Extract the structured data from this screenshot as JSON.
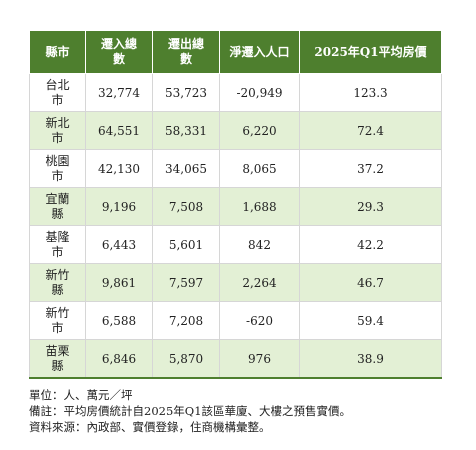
{
  "table": {
    "headers": [
      "縣市",
      "遷入總數",
      "遷出總數",
      "淨遷入人口",
      "2025年Q1平均房價"
    ],
    "rows": [
      {
        "city": "台北市",
        "in": "32,774",
        "out": "53,723",
        "net": "-20,949",
        "price": "123.3"
      },
      {
        "city": "新北市",
        "in": "64,551",
        "out": "58,331",
        "net": "6,220",
        "price": "72.4"
      },
      {
        "city": "桃園市",
        "in": "42,130",
        "out": "34,065",
        "net": "8,065",
        "price": "37.2"
      },
      {
        "city": "宜蘭縣",
        "in": "9,196",
        "out": "7,508",
        "net": "1,688",
        "price": "29.3"
      },
      {
        "city": "基隆市",
        "in": "6,443",
        "out": "5,601",
        "net": "842",
        "price": "42.2"
      },
      {
        "city": "新竹縣",
        "in": "9,861",
        "out": "7,597",
        "net": "2,264",
        "price": "46.7"
      },
      {
        "city": "新竹市",
        "in": "6,588",
        "out": "7,208",
        "net": "-620",
        "price": "59.4"
      },
      {
        "city": "苗栗縣",
        "in": "6,846",
        "out": "5,870",
        "net": "976",
        "price": "38.9"
      }
    ]
  },
  "notes": {
    "unit": "單位：人、萬元／坪",
    "remark": "備註：平均房價統計自2025年Q1該區華廈、大樓之預售實價。",
    "source": "資料來源：內政部、實價登錄，住商機構彙整。"
  },
  "colors": {
    "header_bg": "#4e7f2e",
    "alt_row_bg": "#e3f0d5"
  }
}
